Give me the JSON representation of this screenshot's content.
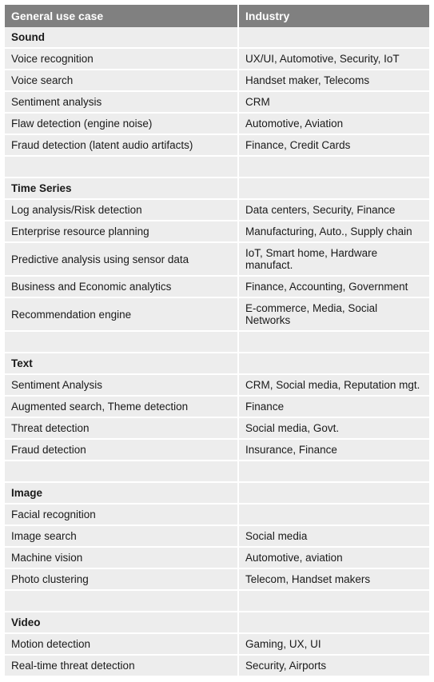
{
  "table": {
    "headers": [
      "General use case",
      "Industry"
    ],
    "header_bg": "#808080",
    "header_color": "#ffffff",
    "row_bg": "#ededed",
    "gap_color": "#ffffff",
    "font_family": "Arial, Helvetica, sans-serif",
    "header_fontsize": 14,
    "cell_fontsize": 13.5,
    "col_widths_pct": [
      55,
      45
    ],
    "sections": [
      {
        "title": "Sound",
        "rows": [
          [
            "Voice recognition",
            "UX/UI, Automotive, Security, IoT"
          ],
          [
            "Voice search",
            "Handset maker, Telecoms"
          ],
          [
            "Sentiment analysis",
            "CRM"
          ],
          [
            "Flaw detection (engine noise)",
            "Automotive, Aviation"
          ],
          [
            "Fraud detection (latent audio artifacts)",
            "Finance, Credit Cards"
          ]
        ]
      },
      {
        "title": "Time Series",
        "rows": [
          [
            "Log analysis/Risk detection",
            "Data centers, Security, Finance"
          ],
          [
            "Enterprise resource planning",
            "Manufacturing, Auto., Supply chain"
          ],
          [
            "Predictive analysis using sensor data",
            "IoT, Smart home, Hardware manufact."
          ],
          [
            "Business and Economic analytics",
            "Finance, Accounting, Government"
          ],
          [
            "Recommendation engine",
            "E-commerce, Media, Social Networks"
          ]
        ]
      },
      {
        "title": "Text",
        "rows": [
          [
            "Sentiment Analysis",
            "CRM, Social media, Reputation mgt."
          ],
          [
            "Augmented search, Theme detection",
            "Finance"
          ],
          [
            "Threat detection",
            "Social media, Govt."
          ],
          [
            "Fraud detection",
            "Insurance, Finance"
          ]
        ]
      },
      {
        "title": "Image",
        "rows": [
          [
            "Facial recognition",
            ""
          ],
          [
            "Image search",
            "Social media"
          ],
          [
            "Machine vision",
            "Automotive, aviation"
          ],
          [
            "Photo clustering",
            "Telecom, Handset makers"
          ]
        ]
      },
      {
        "title": "Video",
        "rows": [
          [
            "Motion detection",
            "Gaming, UX, UI"
          ],
          [
            "Real-time threat detection",
            "Security, Airports"
          ]
        ]
      }
    ]
  }
}
